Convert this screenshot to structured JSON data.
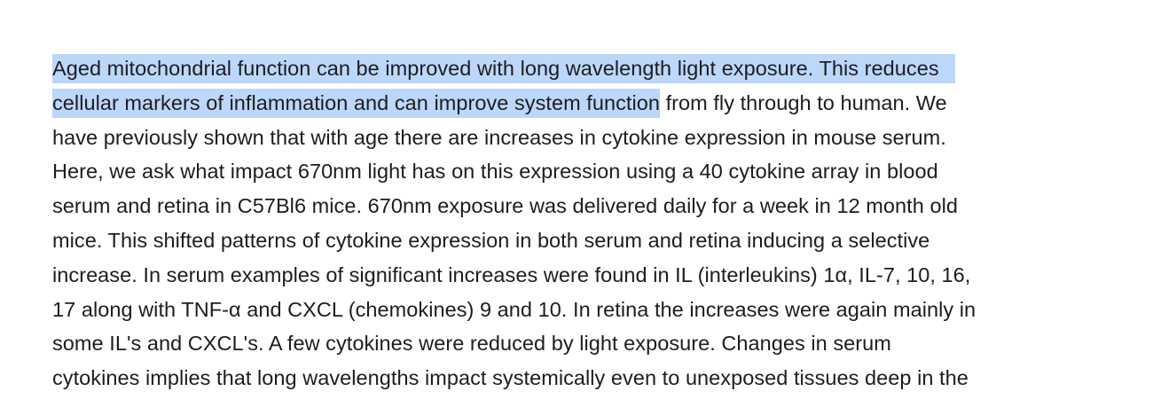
{
  "document": {
    "highlight_color": "#bcd7fa",
    "text_color": "#1d1d1f",
    "lines": [
      {
        "selected": "Aged mitochondrial function can be improved with long wavelength light exposure. This reduces",
        "rest": ""
      },
      {
        "selected": "cellular markers of inflammation and can improve system function",
        "rest": " from fly through to human. We"
      },
      {
        "selected": "",
        "rest": "have previously shown that with age there are increases in cytokine expression in mouse serum."
      },
      {
        "selected": "",
        "rest": "Here, we ask what impact 670nm light has on this expression using a 40 cytokine array in blood"
      },
      {
        "selected": "",
        "rest": "serum and retina in C57Bl6 mice. 670nm exposure was delivered daily for a week in 12 month old"
      },
      {
        "selected": "",
        "rest": "mice. This shifted patterns of cytokine expression in both serum and retina inducing a selective"
      },
      {
        "selected": "",
        "rest": "increase. In serum examples of significant increases were found in IL (interleukins) 1α, IL-7, 10, 16,"
      },
      {
        "selected": "",
        "rest": "17 along with TNF-α and CXCL (chemokines) 9 and 10. In retina the increases were again mainly in"
      },
      {
        "selected": "",
        "rest": "some IL's and CXCL's. A few cytokines were reduced by light exposure. Changes in serum"
      },
      {
        "selected": "",
        "rest": "cytokines implies that long wavelengths impact systemically even to unexposed tissues deep in the"
      }
    ]
  }
}
